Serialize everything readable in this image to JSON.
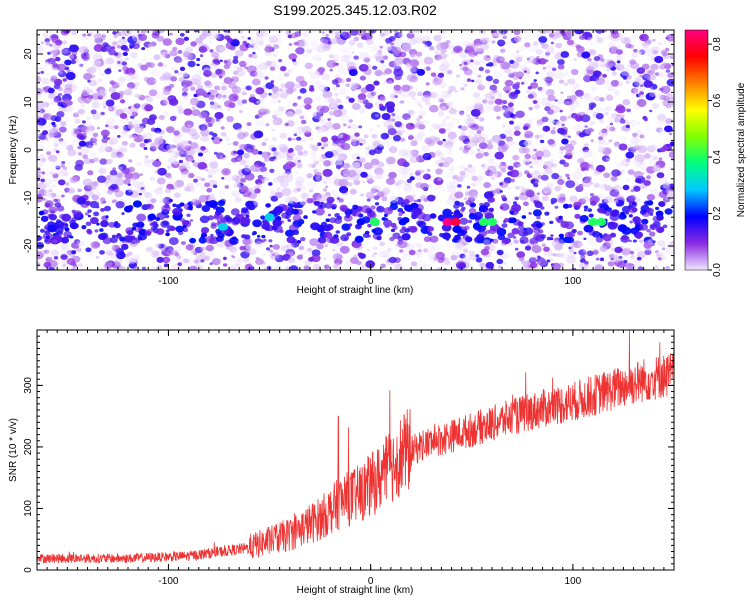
{
  "title": "S199.2025.345.12.03.R02",
  "chart_data": [
    {
      "type": "heatmap",
      "xlabel": "Height of straight line (km)",
      "ylabel": "Frequency (Hz)",
      "xlim": [
        -165,
        150
      ],
      "ylim": [
        -25,
        25
      ],
      "x_ticks": [
        -100,
        0,
        100
      ],
      "y_ticks": [
        -20,
        -10,
        0,
        10,
        20
      ],
      "colorbar": {
        "label": "Normalized spectral amplitude",
        "range": [
          0,
          0.85
        ],
        "ticks": [
          "0.0",
          "0.2",
          "0.4",
          "0.6",
          "0.8"
        ],
        "ticks_values": [
          0,
          0.2,
          0.4,
          0.6,
          0.8
        ],
        "colors": [
          "#f0e6ff",
          "#8a2be2",
          "#0000ff",
          "#00c8ff",
          "#00ff80",
          "#80ff00",
          "#ffff00",
          "#ff8000",
          "#ff0000",
          "#ff0080"
        ]
      },
      "band": {
        "frequency": -15,
        "width": 4
      },
      "gap": {
        "x": 40,
        "width": 6
      },
      "hotspots": [
        {
          "x": -73,
          "y": -16,
          "value": 0.3
        },
        {
          "x": -50,
          "y": -14,
          "value": 0.3
        },
        {
          "x": 2,
          "y": -15,
          "value": 0.4
        },
        {
          "x": 38,
          "y": -15,
          "value": 0.85
        },
        {
          "x": 42,
          "y": -15,
          "value": 0.8
        },
        {
          "x": 56,
          "y": -15,
          "value": 0.4
        },
        {
          "x": 60,
          "y": -15,
          "value": 0.4
        },
        {
          "x": 110,
          "y": -15,
          "value": 0.4
        },
        {
          "x": 114,
          "y": -15,
          "value": 0.4
        }
      ]
    },
    {
      "type": "line",
      "xlabel": "Height of straight line (km)",
      "ylabel": "SNR (10 * v/v)",
      "xlim": [
        -165,
        150
      ],
      "ylim": [
        0,
        390
      ],
      "x_ticks": [
        -100,
        0,
        100
      ],
      "y_ticks": [
        0,
        100,
        200,
        300
      ],
      "color": "#ee3333",
      "trend": {
        "x": [
          -165,
          -120,
          -90,
          -60,
          -40,
          -25,
          -15,
          -5,
          5,
          15,
          25,
          40,
          60,
          80,
          100,
          120,
          135,
          150
        ],
        "y": [
          18,
          18,
          22,
          35,
          55,
          80,
          105,
          120,
          145,
          180,
          200,
          215,
          235,
          255,
          270,
          290,
          305,
          315
        ]
      },
      "spikes": [
        {
          "x": -16,
          "y": 250
        },
        {
          "x": -11,
          "y": 232
        },
        {
          "x": 128,
          "y": 390
        },
        {
          "x": 143,
          "y": 370
        }
      ]
    }
  ]
}
